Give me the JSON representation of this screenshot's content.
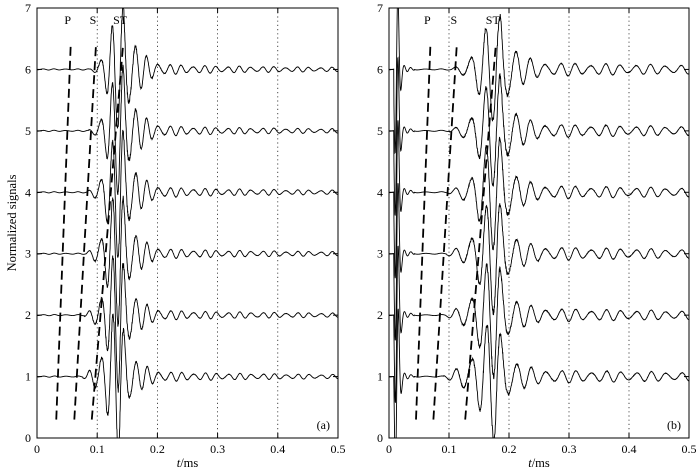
{
  "chart_data": [
    {
      "type": "line",
      "panel_tag": "(a)",
      "xlabel_italic": "t",
      "xlabel_unit": "/ms",
      "ylabel": "Normalized signals",
      "xlim": [
        0,
        0.5
      ],
      "ylim": [
        0,
        7
      ],
      "x_ticks": [
        "0",
        "0.1",
        "0.2",
        "0.3",
        "0.4",
        "0.5"
      ],
      "y_ticks": [
        "0",
        "1",
        "2",
        "3",
        "4",
        "5",
        "6",
        "7"
      ],
      "grid": "vertical dotted at x ticks",
      "baselines": [
        1,
        2,
        3,
        4,
        5,
        6
      ],
      "signal": {
        "onset": 0.085,
        "peak_time": 0.142,
        "frequency_khz": 52,
        "peak_amplitude": 1.1,
        "coda_amplitude": 0.07,
        "coda_decay_ms": 0.1
      },
      "arrival_lines": [
        {
          "label": "P",
          "points": [
            [
              0.032,
              0.3
            ],
            [
              0.056,
              6.4
            ]
          ]
        },
        {
          "label": "S",
          "points": [
            [
              0.062,
              0.3
            ],
            [
              0.098,
              6.4
            ]
          ]
        },
        {
          "label": "ST",
          "points": [
            [
              0.091,
              0.3
            ],
            [
              0.143,
              6.4
            ]
          ]
        }
      ]
    },
    {
      "type": "line",
      "panel_tag": "(b)",
      "xlabel_italic": "t",
      "xlabel_unit": "/ms",
      "ylabel": "",
      "xlim": [
        0,
        0.5
      ],
      "ylim": [
        0,
        7
      ],
      "x_ticks": [
        "0",
        "0.1",
        "0.2",
        "0.3",
        "0.4",
        "0.5"
      ],
      "y_ticks": [
        "0",
        "1",
        "2",
        "3",
        "4",
        "5",
        "6",
        "7"
      ],
      "grid": "vertical dotted at x ticks",
      "baselines": [
        1,
        2,
        3,
        4,
        5,
        6
      ],
      "signal": {
        "onset": 0.1,
        "peak_time": 0.185,
        "frequency_khz": 40,
        "peak_amplitude": 0.95,
        "coda_amplitude": 0.1,
        "coda_decay_ms": 0.15,
        "early_burst_time": 0.012
      },
      "arrival_lines": [
        {
          "label": "P",
          "points": [
            [
              0.045,
              0.3
            ],
            [
              0.069,
              6.4
            ]
          ]
        },
        {
          "label": "S",
          "points": [
            [
              0.074,
              0.3
            ],
            [
              0.113,
              6.4
            ]
          ]
        },
        {
          "label": "ST",
          "points": [
            [
              0.127,
              0.3
            ],
            [
              0.178,
              6.4
            ]
          ]
        }
      ]
    }
  ]
}
